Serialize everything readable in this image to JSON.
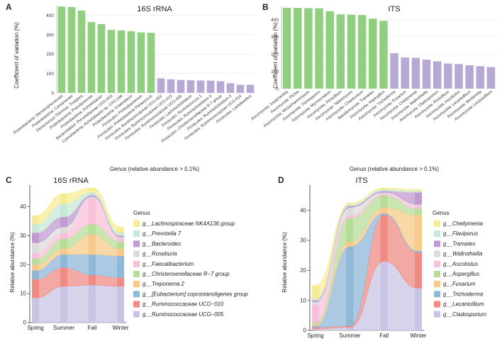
{
  "chart_data": [
    {
      "panel": "A",
      "type": "bar",
      "title": "16S rRNA",
      "ylabel": "Coefficient of variation (%)",
      "xlabel": "Genus (relative abundance > 0.1%)",
      "ylim": [
        0,
        450
      ],
      "yticks": [
        0,
        100,
        200,
        300,
        400
      ],
      "colors": [
        "#8fcf7f",
        "#b8a8d4"
      ],
      "categories": [
        "Proteobacteria: Stenotrophomonas",
        "Proteobacteria: Comamonas",
        "Deinococcus-Thermus: Truepera",
        "Proteobacteria: Pseudomonas",
        "Proteobacteria: Acinetobacter",
        "Bacteroidetes: Prevotellaceae UCG-003",
        "Cyanobacteria: Acinetobacter sp. CAG:196",
        "Proteobacteria: Anaerobium",
        "Firmicutes: Proteobacterium",
        "Firmicutes: Proteobacteria Paracoccus",
        "Firmicutes: Ruminococcaceae UCG-002",
        "Firmicutes: Ruminococcaceae UCG-013",
        "Firmicutes: Ruminococcaceae UCG-005",
        "Firmicutes: Lachnoclostridium",
        "Firmicutes: Ruminococcus 1",
        "Firmicutes: Ruminiclostridium 9",
        "Firmicutes: Christensenellaceae R-7 group",
        "Firmicutes: Ruminiclostridium 5",
        "Firmicutes: Ruminococcaceae UCG-010",
        "Firmicutes: Lactobacillus"
      ],
      "values": [
        445,
        443,
        425,
        365,
        355,
        325,
        322,
        318,
        312,
        310,
        75,
        70,
        67,
        65,
        64,
        63,
        60,
        50,
        42,
        42
      ],
      "groups": [
        0,
        0,
        0,
        0,
        0,
        0,
        0,
        0,
        0,
        0,
        1,
        1,
        1,
        1,
        1,
        1,
        1,
        1,
        1,
        1
      ]
    },
    {
      "panel": "B",
      "type": "bar",
      "title": "ITS",
      "ylabel": "Coefficient of variation (%)",
      "xlabel": "Genus (relative abundance > 0.1%)",
      "ylim": [
        0,
        480
      ],
      "yticks": [
        0,
        100,
        200,
        300,
        400
      ],
      "colors": [
        "#8fcf7f",
        "#b8a8d4"
      ],
      "categories": [
        "Ascomycota: Issatchenkia",
        "Ascomycota: Pichia",
        "Ascomycota: Wickerhamomyces",
        "Ascomycota: Trichosporon",
        "Ascomycota: Myrmecridium",
        "Ascomycota: Penicillium",
        "Ascomycota: Talaromyces",
        "Ascomycota: Chaetomium",
        "Basidiomycota: Trametes",
        "Ascomycota: Aspergillus",
        "Ascomycota: Trichoderma",
        "Ascomycota: Fusarium",
        "Ascomycota: Cheilymenia",
        "Ascomycota: Wallrothiella",
        "Ascomycota: Cladosporium",
        "Ascomycota: Penicillium",
        "Ascomycota: Ascobolus",
        "Ascomycota: Lecanicillium",
        "Ascomycota: Mortierella",
        "Ascomycota: Lecanicillium"
      ],
      "values": [
        468,
        467,
        466,
        465,
        448,
        430,
        428,
        426,
        405,
        392,
        205,
        180,
        178,
        168,
        158,
        145,
        142,
        135,
        130,
        125
      ],
      "groups": [
        0,
        0,
        0,
        0,
        0,
        0,
        0,
        0,
        0,
        0,
        1,
        1,
        1,
        1,
        1,
        1,
        1,
        1,
        1,
        1
      ]
    },
    {
      "panel": "C",
      "type": "area",
      "title": "16S rRNA",
      "ylabel": "Relative abundance (%)",
      "xlabel": "",
      "ylim": [
        0,
        47
      ],
      "yticks": [
        0,
        10,
        20,
        30,
        40
      ],
      "x": [
        "Spring",
        "Summer",
        "Fall",
        "Winter"
      ],
      "legend_title": "Genus",
      "series": [
        {
          "name": "g__Ruminococcaceae UCG−005",
          "color": "#c9c4e3",
          "values": [
            8.5,
            12.5,
            13.0,
            12.5
          ]
        },
        {
          "name": "g__Ruminococcaceae UCG−010",
          "color": "#f08b84",
          "values": [
            6.5,
            6.5,
            3.5,
            3.0
          ]
        },
        {
          "name": "g__[Eubacterium] coprostanoligenes group",
          "color": "#8fb7d8",
          "values": [
            3.0,
            4.5,
            7.0,
            7.5
          ]
        },
        {
          "name": "g__Treponema 2",
          "color": "#f7c98a",
          "values": [
            2.0,
            2.0,
            7.0,
            2.5
          ]
        },
        {
          "name": "g__Christensenellaceae R−7 group",
          "color": "#b7dd98",
          "values": [
            2.0,
            3.5,
            3.5,
            2.5
          ]
        },
        {
          "name": "g__Faecalibacterium",
          "color": "#f8c0d8",
          "values": [
            2.0,
            2.0,
            9.0,
            1.0
          ]
        },
        {
          "name": "g__Roseburia",
          "color": "#dcdcdc",
          "values": [
            3.5,
            2.0,
            0.5,
            0.5
          ]
        },
        {
          "name": "g__Bacteroides",
          "color": "#c19ad1",
          "values": [
            3.5,
            3.5,
            0.5,
            0.5
          ]
        },
        {
          "name": "g__Prevotella 7",
          "color": "#c8e8d8",
          "values": [
            3.0,
            4.5,
            1.0,
            1.0
          ]
        },
        {
          "name": "g__Lachnospiraceae NK4A136 group",
          "color": "#f6ec96",
          "values": [
            3.0,
            3.5,
            1.5,
            2.0
          ]
        }
      ]
    },
    {
      "panel": "D",
      "type": "area",
      "title": "ITS",
      "ylabel": "Relative abundance (%)",
      "xlabel": "",
      "ylim": [
        0,
        48
      ],
      "yticks": [
        0,
        10,
        20,
        30,
        40
      ],
      "x": [
        "Spring",
        "Summer",
        "Fall",
        "Winter"
      ],
      "legend_title": "Genus",
      "series": [
        {
          "name": "g__Cladosporium",
          "color": "#c9c4e3",
          "values": [
            0.5,
            1.0,
            23.0,
            14.0
          ]
        },
        {
          "name": "g__Lecanicillium",
          "color": "#f08b84",
          "values": [
            0.5,
            0.5,
            15.5,
            12.0
          ]
        },
        {
          "name": "g__Trichoderma",
          "color": "#8fb7d8",
          "values": [
            0.5,
            26.5,
            0.5,
            0.5
          ]
        },
        {
          "name": "g__Fusarium",
          "color": "#f7c98a",
          "values": [
            0.5,
            1.5,
            2.0,
            12.0
          ]
        },
        {
          "name": "g__Aspergillus",
          "color": "#b7dd98",
          "values": [
            0.5,
            8.0,
            4.0,
            2.0
          ]
        },
        {
          "name": "g__Ascobolus",
          "color": "#f8c0d8",
          "values": [
            6.0,
            1.0,
            0.5,
            1.0
          ]
        },
        {
          "name": "g__Wallrothiella",
          "color": "#dcdcdc",
          "values": [
            1.0,
            2.5,
            0.5,
            0.5
          ]
        },
        {
          "name": "g__Trametes",
          "color": "#c19ad1",
          "values": [
            0.5,
            0.5,
            0.5,
            4.0
          ]
        },
        {
          "name": "g__Flaviporus",
          "color": "#c8e8d8",
          "values": [
            0.5,
            0.5,
            0.5,
            0.5
          ]
        },
        {
          "name": "g__Cheilymenia",
          "color": "#f6ec96",
          "values": [
            4.5,
            0.5,
            0.5,
            0.5
          ]
        }
      ]
    }
  ]
}
